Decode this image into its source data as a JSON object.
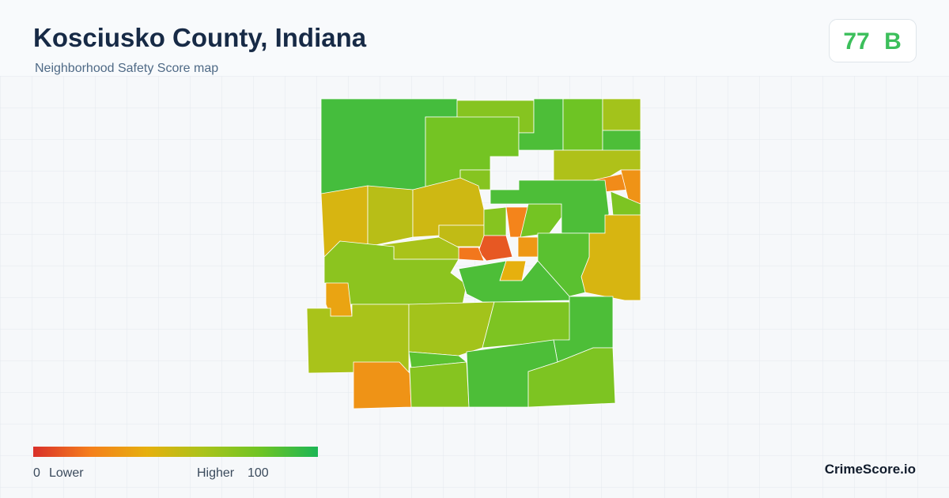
{
  "header": {
    "title": "Kosciusko County, Indiana",
    "subtitle": "Neighborhood Safety Score map"
  },
  "score": {
    "value": 77,
    "grade": "B"
  },
  "legend": {
    "min": 0,
    "min_label": "Lower",
    "max_label": "Higher",
    "max": 100,
    "colors": [
      "#d9302a",
      "#f57f1c",
      "#e6b00e",
      "#a9c31a",
      "#6ec424",
      "#1cb655"
    ]
  },
  "map": {
    "regions": {
      "scores": [
        90,
        72,
        78,
        88,
        80,
        62,
        88,
        58,
        25,
        28,
        75,
        72,
        45,
        55,
        48,
        52,
        72,
        22,
        78,
        88,
        45,
        10,
        18,
        30,
        40,
        85,
        60,
        70,
        35,
        88,
        60,
        62,
        75,
        88,
        85,
        28,
        72,
        88,
        75
      ]
    }
  },
  "brand": "CrimeScore.io"
}
